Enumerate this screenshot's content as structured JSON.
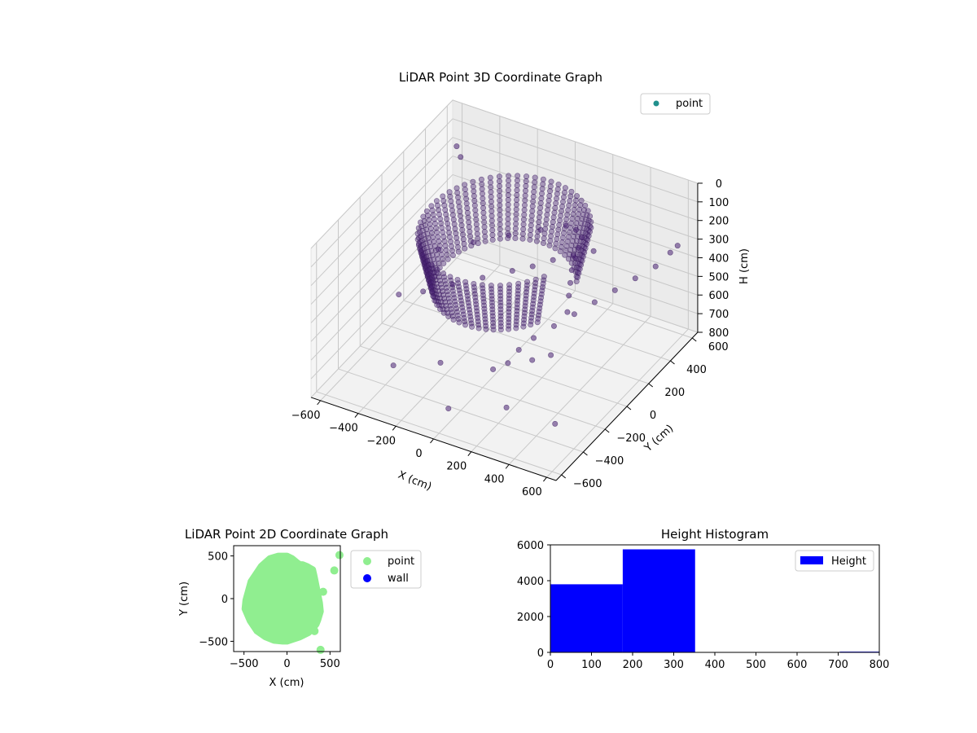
{
  "chart_data": [
    {
      "type": "scatter",
      "title": "LiDAR Point 3D Coordinate Graph",
      "xlabel": "X (cm)",
      "ylabel": "Y (cm)",
      "zlabel": "H (cm)",
      "xlim": [
        -650,
        650
      ],
      "ylim": [
        -650,
        650
      ],
      "zlim": [
        800,
        0
      ],
      "x_ticks": [
        "−600",
        "−400",
        "−200",
        "0",
        "200",
        "400",
        "600"
      ],
      "y_ticks": [
        "−600",
        "−400",
        "−200",
        "0",
        "200",
        "400",
        "600"
      ],
      "z_ticks": [
        "0",
        "100",
        "200",
        "300",
        "400",
        "500",
        "600",
        "700",
        "800"
      ],
      "legend": [
        {
          "label": "point",
          "color": "#21908d"
        }
      ],
      "legend_position": "upper-right",
      "point_color": "#482173",
      "grid": true,
      "series": [
        {
          "name": "point",
          "description_shape": "dense curved shell of points around the sensor",
          "x": [
            -300,
            -200,
            -100,
            0,
            100,
            150,
            200,
            250,
            300,
            -350,
            -250,
            -150,
            -50,
            50,
            120,
            180,
            220,
            260,
            300,
            350,
            400,
            450,
            250,
            300,
            350,
            400,
            450,
            500,
            550,
            600,
            620,
            630,
            -50,
            200,
            250,
            350,
            420,
            -600,
            -550,
            -300,
            50,
            300,
            500
          ],
          "y": [
            -450,
            -400,
            -300,
            -200,
            -100,
            0,
            100,
            200,
            300,
            0,
            150,
            300,
            420,
            480,
            450,
            400,
            300,
            200,
            100,
            0,
            -100,
            -200,
            -300,
            -250,
            -150,
            -50,
            50,
            150,
            250,
            350,
            450,
            500,
            -500,
            -450,
            -400,
            -350,
            -300,
            600,
            550,
            -500,
            -600,
            -500,
            -400
          ],
          "h": [
            250,
            230,
            220,
            210,
            200,
            220,
            230,
            250,
            270,
            300,
            320,
            340,
            350,
            330,
            310,
            300,
            280,
            260,
            250,
            240,
            230,
            240,
            450,
            400,
            380,
            360,
            340,
            320,
            300,
            280,
            260,
            250,
            500,
            480,
            460,
            440,
            420,
            200,
            210,
            600,
            650,
            620,
            700
          ]
        }
      ]
    },
    {
      "type": "scatter",
      "title": "LiDAR Point 2D Coordinate Graph",
      "xlabel": "X (cm)",
      "ylabel": "Y (cm)",
      "xlim": [
        -620,
        620
      ],
      "ylim": [
        -620,
        620
      ],
      "x_ticks": [
        "−500",
        "0",
        "500"
      ],
      "y_ticks": [
        "−500",
        "0",
        "500"
      ],
      "legend": [
        {
          "label": "point",
          "color": "#90ee90"
        },
        {
          "label": "wall",
          "color": "#0000ff"
        }
      ],
      "legend_position": "outside-right",
      "series": [
        {
          "name": "point",
          "color": "#90ee90",
          "blob_x": [
            -480,
            -420,
            -300,
            -200,
            -100,
            0,
            60,
            120,
            150,
            180,
            230,
            300,
            320,
            340,
            360,
            380,
            390,
            360,
            340,
            300,
            250,
            150,
            60,
            0,
            -50,
            -150,
            -250,
            -350,
            -430,
            -490
          ],
          "blob_y": [
            -20,
            200,
            380,
            470,
            500,
            500,
            470,
            420,
            400,
            400,
            380,
            340,
            250,
            150,
            50,
            -50,
            -150,
            -250,
            -300,
            -350,
            -400,
            -450,
            -480,
            -500,
            -500,
            -490,
            -450,
            -380,
            -260,
            -120
          ],
          "outliers_x": [
            610,
            550,
            420,
            310,
            320,
            390
          ],
          "outliers_y": [
            510,
            330,
            80,
            -250,
            -380,
            -600
          ]
        },
        {
          "name": "wall",
          "color": "#0000ff",
          "x": [],
          "y": []
        }
      ]
    },
    {
      "type": "bar",
      "title": "Height Histogram",
      "xlabel": "",
      "ylabel": "",
      "xlim": [
        0,
        800
      ],
      "ylim": [
        0,
        6000
      ],
      "x_ticks": [
        "0",
        "100",
        "200",
        "300",
        "400",
        "500",
        "600",
        "700",
        "800"
      ],
      "y_ticks": [
        "0",
        "2000",
        "4000",
        "6000"
      ],
      "legend": [
        {
          "label": "Height",
          "color": "#0000ff"
        }
      ],
      "legend_position": "upper-right",
      "bin_edges": [
        0,
        176,
        352,
        528,
        704,
        880
      ],
      "values": [
        3800,
        5750,
        0,
        0,
        40
      ],
      "color": "#0000ff"
    }
  ]
}
